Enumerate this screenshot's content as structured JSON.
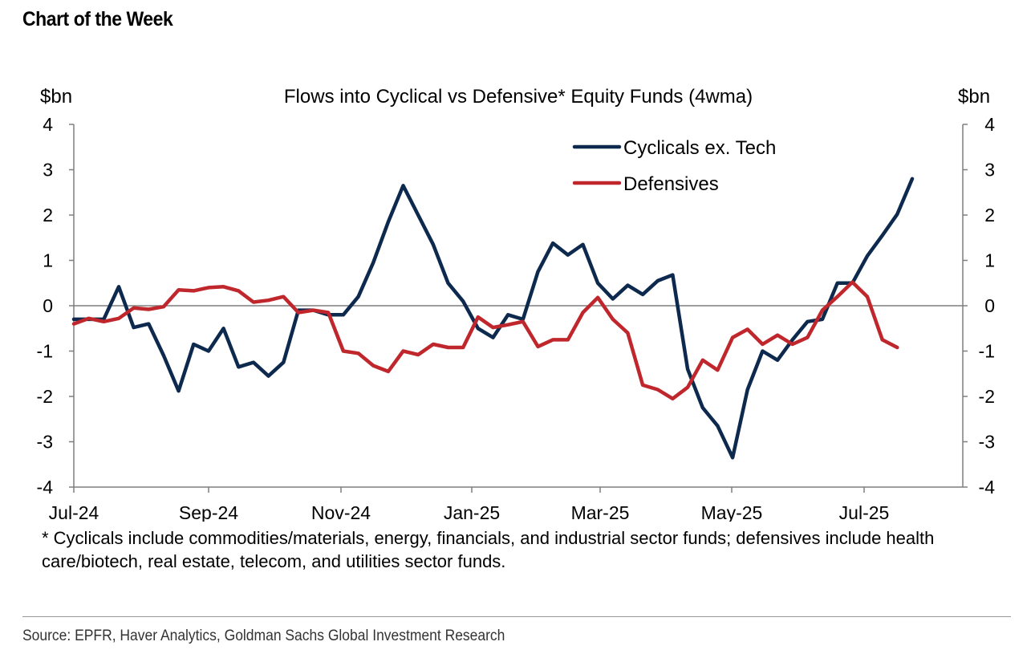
{
  "header": {
    "title": "Chart of the Week"
  },
  "footnote": "* Cyclicals include commodities/materials, energy, financials, and industrial sector funds; defensives include health care/biotech, real estate, telecom, and utilities sector funds.",
  "source": "Source: EPFR, Haver Analytics, Goldman Sachs Global Investment Research",
  "chart_data": {
    "type": "line",
    "title": "Flows into Cyclical vs Defensive* Equity Funds (4wma)",
    "ylabel_left": "$bn",
    "ylabel_right": "$bn",
    "ylim": [
      -4,
      4
    ],
    "yticks": [
      "4",
      "3",
      "2",
      "1",
      "0",
      "-1",
      "-2",
      "-3",
      "-4"
    ],
    "xticks": [
      "Jul-24",
      "Sep-24",
      "Nov-24",
      "Jan-25",
      "Mar-25",
      "May-25",
      "Jul-25"
    ],
    "grid": false,
    "legend_position": "top-right",
    "series": [
      {
        "name": "Cyclicals ex. Tech",
        "color": "#0d2a4e",
        "values": [
          -0.3,
          -0.3,
          -0.3,
          0.42,
          -0.48,
          -0.4,
          -1.1,
          -1.88,
          -0.85,
          -1.0,
          -0.5,
          -1.35,
          -1.25,
          -1.55,
          -1.25,
          -0.1,
          -0.1,
          -0.2,
          -0.2,
          0.2,
          0.95,
          1.85,
          2.65,
          2.0,
          1.35,
          0.5,
          0.1,
          -0.5,
          -0.7,
          -0.2,
          -0.3,
          0.75,
          1.38,
          1.12,
          1.35,
          0.5,
          0.15,
          0.45,
          0.25,
          0.55,
          0.68,
          -1.4,
          -2.25,
          -2.65,
          -3.35,
          -1.85,
          -1.0,
          -1.2,
          -0.75,
          -0.35,
          -0.3,
          0.5,
          0.5,
          1.1,
          1.55,
          2.02,
          2.8
        ]
      },
      {
        "name": "Defensives",
        "color": "#c0272d",
        "values": [
          -0.4,
          -0.28,
          -0.35,
          -0.28,
          -0.05,
          -0.08,
          -0.02,
          0.35,
          0.33,
          0.4,
          0.42,
          0.33,
          0.08,
          0.12,
          0.2,
          -0.15,
          -0.1,
          -0.15,
          -1.0,
          -1.05,
          -1.32,
          -1.45,
          -1.0,
          -1.08,
          -0.85,
          -0.92,
          -0.92,
          -0.25,
          -0.48,
          -0.42,
          -0.35,
          -0.9,
          -0.75,
          -0.75,
          -0.15,
          0.18,
          -0.3,
          -0.6,
          -1.75,
          -1.85,
          -2.05,
          -1.8,
          -1.2,
          -1.42,
          -0.7,
          -0.52,
          -0.85,
          -0.65,
          -0.85,
          -0.7,
          -0.1,
          0.2,
          0.52,
          0.2,
          -0.75,
          -0.92
        ]
      }
    ]
  }
}
